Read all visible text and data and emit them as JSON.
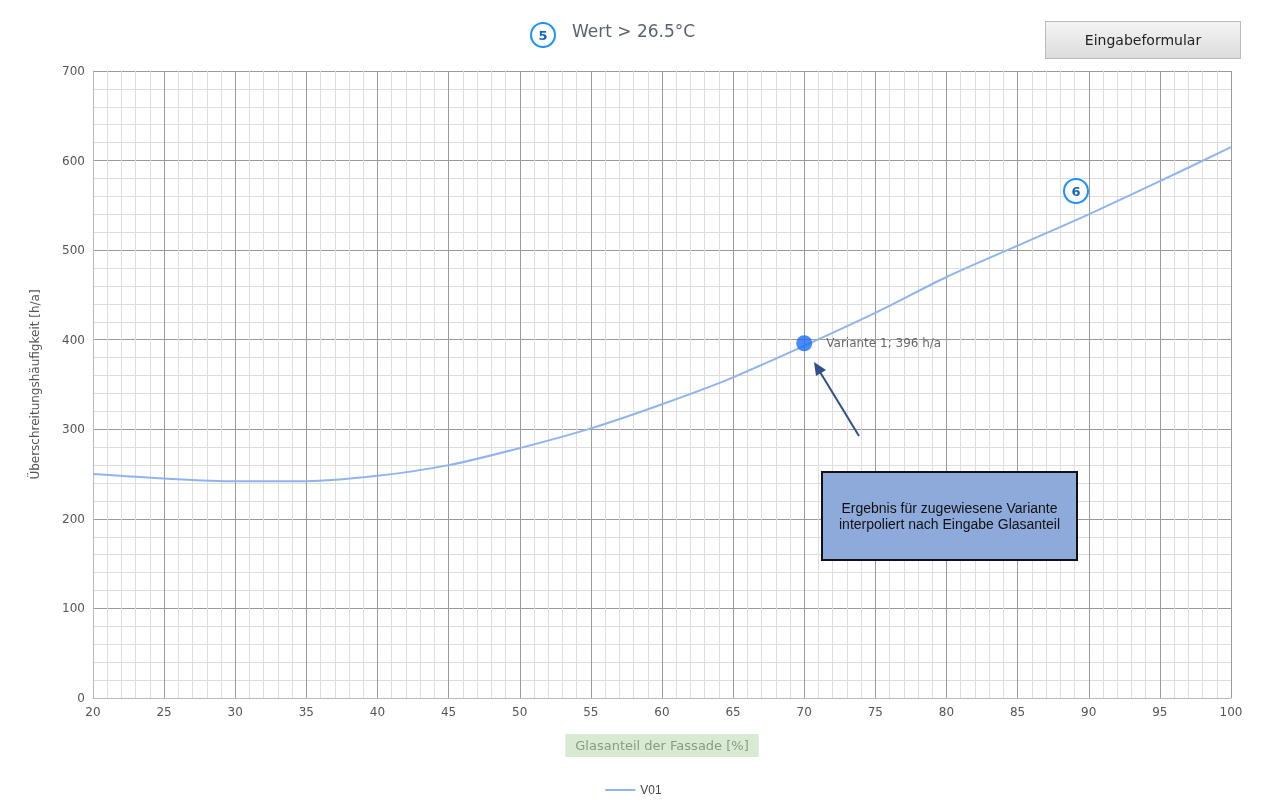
{
  "chart_data": {
    "type": "line",
    "title": "Wert > 26.5°C",
    "xlabel": "Glasanteil der Fassade [%]",
    "ylabel": "Überschreitungshäufigkeit [h/a]",
    "x": [
      20,
      25,
      30,
      35,
      40,
      45,
      50,
      55,
      60,
      65,
      70,
      75,
      80,
      85,
      90,
      95,
      100
    ],
    "series": [
      {
        "name": "V01",
        "color": "#8fb4f0",
        "values": [
          250,
          245,
          242,
          242,
          248,
          260,
          279,
          301,
          328,
          358,
          null,
          430,
          470,
          505,
          540,
          577,
          615
        ]
      },
      {
        "type": "scatter",
        "marker": "circle",
        "color": "#1a6ef5",
        "x": [
          70
        ],
        "values": [
          396
        ]
      }
    ],
    "xlim": [
      20,
      100
    ],
    "xticks": [
      20,
      25,
      30,
      35,
      40,
      45,
      50,
      55,
      60,
      65,
      70,
      75,
      80,
      85,
      90,
      95,
      100
    ],
    "ylim": [
      0,
      700
    ],
    "yticks": [
      0,
      100,
      200,
      300,
      400,
      500,
      600,
      700
    ],
    "grid": true,
    "legend": "bottom",
    "marker": "none",
    "annotations": [
      "5",
      "6",
      "Eingabeformular",
      "Ergebnis für zugewiesene Variante interpoliert nach Eingabe Glasanteil",
      {
        "text": "Variante 1; 396 h/a",
        "x": 70,
        "y": 396
      }
    ]
  }
}
